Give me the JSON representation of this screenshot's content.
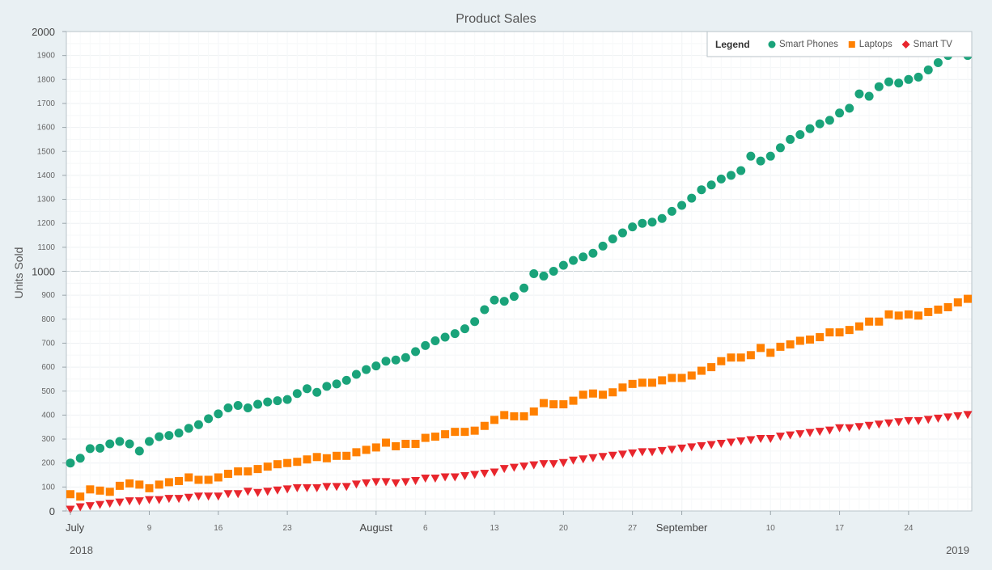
{
  "chart_data": {
    "type": "scatter",
    "title": "Product Sales",
    "ylabel": "Units Sold",
    "xlabel": "",
    "ylim": [
      0,
      2000
    ],
    "xlim": [
      "2018-07-01",
      "2018-09-30"
    ],
    "y_ticks": [
      0,
      100,
      200,
      300,
      400,
      500,
      600,
      700,
      800,
      900,
      1000,
      1100,
      1200,
      1300,
      1400,
      1500,
      1600,
      1700,
      1800,
      1900,
      2000
    ],
    "x_ticks": [
      {
        "date": "2018-07-01",
        "label": "July",
        "major": true
      },
      {
        "date": "2018-07-09",
        "label": "9",
        "major": false
      },
      {
        "date": "2018-07-16",
        "label": "16",
        "major": false
      },
      {
        "date": "2018-07-23",
        "label": "23",
        "major": false
      },
      {
        "date": "2018-08-01",
        "label": "August",
        "major": true
      },
      {
        "date": "2018-08-06",
        "label": "6",
        "major": false
      },
      {
        "date": "2018-08-13",
        "label": "13",
        "major": false
      },
      {
        "date": "2018-08-20",
        "label": "20",
        "major": false
      },
      {
        "date": "2018-08-27",
        "label": "27",
        "major": false
      },
      {
        "date": "2018-09-01",
        "label": "September",
        "major": true
      },
      {
        "date": "2018-09-10",
        "label": "10",
        "major": false
      },
      {
        "date": "2018-09-17",
        "label": "17",
        "major": false
      },
      {
        "date": "2018-09-24",
        "label": "24",
        "major": false
      }
    ],
    "year_labels": {
      "left": "2018",
      "right": "2019"
    },
    "legend": {
      "title": "Legend",
      "position": "top-right"
    },
    "grid": true,
    "x": [
      "2018-07-01",
      "2018-07-02",
      "2018-07-03",
      "2018-07-04",
      "2018-07-05",
      "2018-07-06",
      "2018-07-07",
      "2018-07-08",
      "2018-07-09",
      "2018-07-10",
      "2018-07-11",
      "2018-07-12",
      "2018-07-13",
      "2018-07-14",
      "2018-07-15",
      "2018-07-16",
      "2018-07-17",
      "2018-07-18",
      "2018-07-19",
      "2018-07-20",
      "2018-07-21",
      "2018-07-22",
      "2018-07-23",
      "2018-07-24",
      "2018-07-25",
      "2018-07-26",
      "2018-07-27",
      "2018-07-28",
      "2018-07-29",
      "2018-07-30",
      "2018-07-31",
      "2018-08-01",
      "2018-08-02",
      "2018-08-03",
      "2018-08-04",
      "2018-08-05",
      "2018-08-06",
      "2018-08-07",
      "2018-08-08",
      "2018-08-09",
      "2018-08-10",
      "2018-08-11",
      "2018-08-12",
      "2018-08-13",
      "2018-08-14",
      "2018-08-15",
      "2018-08-16",
      "2018-08-17",
      "2018-08-18",
      "2018-08-19",
      "2018-08-20",
      "2018-08-21",
      "2018-08-22",
      "2018-08-23",
      "2018-08-24",
      "2018-08-25",
      "2018-08-26",
      "2018-08-27",
      "2018-08-28",
      "2018-08-29",
      "2018-08-30",
      "2018-08-31",
      "2018-09-01",
      "2018-09-02",
      "2018-09-03",
      "2018-09-04",
      "2018-09-05",
      "2018-09-06",
      "2018-09-07",
      "2018-09-08",
      "2018-09-09",
      "2018-09-10",
      "2018-09-11",
      "2018-09-12",
      "2018-09-13",
      "2018-09-14",
      "2018-09-15",
      "2018-09-16",
      "2018-09-17",
      "2018-09-18",
      "2018-09-19",
      "2018-09-20",
      "2018-09-21",
      "2018-09-22",
      "2018-09-23",
      "2018-09-24",
      "2018-09-25",
      "2018-09-26",
      "2018-09-27",
      "2018-09-28",
      "2018-09-29",
      "2018-09-30"
    ],
    "series": [
      {
        "name": "Smart Phones",
        "marker": "circle",
        "color": "#1aa37a",
        "values": [
          200,
          220,
          260,
          262,
          280,
          290,
          280,
          250,
          290,
          310,
          315,
          325,
          345,
          360,
          385,
          405,
          430,
          440,
          430,
          445,
          455,
          460,
          465,
          490,
          510,
          495,
          520,
          530,
          545,
          570,
          590,
          605,
          625,
          630,
          640,
          665,
          690,
          710,
          725,
          740,
          760,
          790,
          840,
          880,
          875,
          895,
          930,
          990,
          980,
          1000,
          1025,
          1045,
          1060,
          1075,
          1105,
          1135,
          1160,
          1185,
          1200,
          1205,
          1220,
          1250,
          1275,
          1305,
          1340,
          1360,
          1385,
          1400,
          1420,
          1480,
          1460,
          1480,
          1515,
          1550,
          1570,
          1595,
          1615,
          1630,
          1660,
          1680,
          1740,
          1730,
          1770,
          1790,
          1785,
          1800,
          1810,
          1840,
          1870,
          1900,
          1920,
          1900
        ]
      },
      {
        "name": "Laptops",
        "marker": "square",
        "color": "#ff8000",
        "values": [
          70,
          60,
          90,
          85,
          80,
          105,
          115,
          110,
          95,
          110,
          120,
          125,
          140,
          130,
          130,
          140,
          155,
          165,
          165,
          175,
          185,
          195,
          200,
          205,
          215,
          225,
          220,
          230,
          230,
          245,
          255,
          265,
          285,
          270,
          280,
          280,
          305,
          310,
          320,
          330,
          330,
          335,
          355,
          380,
          400,
          395,
          395,
          415,
          450,
          445,
          445,
          460,
          485,
          490,
          485,
          495,
          515,
          530,
          535,
          535,
          545,
          555,
          555,
          565,
          585,
          600,
          625,
          640,
          640,
          650,
          680,
          660,
          685,
          695,
          710,
          715,
          725,
          745,
          745,
          755,
          770,
          790,
          790,
          820,
          815,
          820,
          815,
          830,
          840,
          850,
          870,
          885
        ]
      },
      {
        "name": "Smart TV",
        "marker": "triangle-down",
        "color": "#e8262d",
        "values": [
          5,
          15,
          20,
          25,
          30,
          35,
          40,
          40,
          45,
          45,
          50,
          50,
          55,
          60,
          60,
          60,
          70,
          70,
          80,
          75,
          80,
          85,
          90,
          95,
          95,
          95,
          100,
          100,
          100,
          110,
          115,
          120,
          120,
          115,
          120,
          125,
          135,
          135,
          140,
          140,
          145,
          150,
          155,
          160,
          175,
          180,
          185,
          190,
          195,
          195,
          200,
          210,
          215,
          220,
          225,
          230,
          235,
          240,
          245,
          245,
          250,
          255,
          260,
          265,
          270,
          275,
          280,
          285,
          290,
          295,
          300,
          300,
          310,
          315,
          320,
          325,
          330,
          335,
          345,
          345,
          350,
          355,
          360,
          365,
          370,
          375,
          375,
          380,
          385,
          390,
          395,
          400
        ]
      }
    ]
  }
}
